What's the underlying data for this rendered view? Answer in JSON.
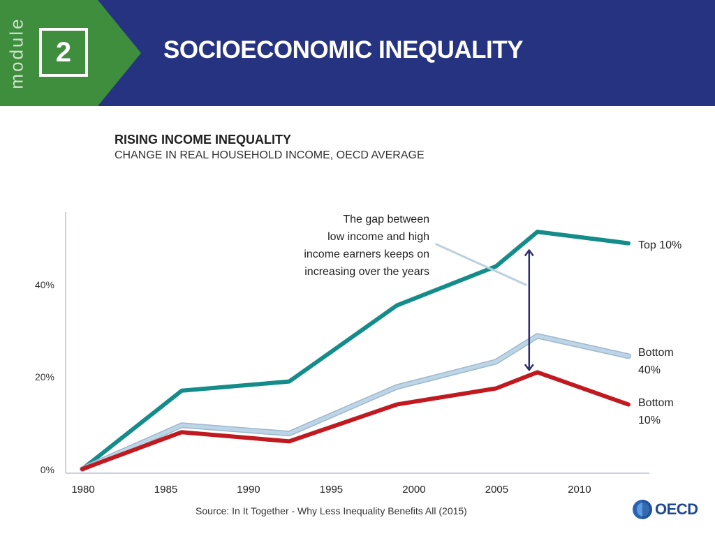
{
  "header": {
    "module_word": "module",
    "module_number": "2",
    "title": "SOCIOECONOMIC INEQUALITY"
  },
  "colors": {
    "header_bg": "#253380",
    "module_bg": "#3f8e3e",
    "top10": "#148c8a",
    "bottom40": "#bcd6e8",
    "bottom10": "#c0191f",
    "arrow": "#2e2f6e"
  },
  "chart_data": {
    "type": "line",
    "title": "RISING INCOME INEQUALITY",
    "subtitle": "CHANGE IN REAL HOUSEHOLD INCOME, OECD AVERAGE",
    "x": [
      1980,
      1986,
      1992.5,
      1999,
      2005,
      2007.5,
      2013
    ],
    "xlim": [
      1980,
      2013
    ],
    "x_ticks": [
      1980,
      1985,
      1990,
      1995,
      2000,
      2005,
      2010
    ],
    "ylim": [
      0,
      50
    ],
    "y_ticks": [
      0,
      20,
      40
    ],
    "y_tick_labels": [
      "0%",
      "20%",
      "40%"
    ],
    "grid": false,
    "series": [
      {
        "name": "Top 10%",
        "values": [
          0,
          17.0,
          19.0,
          35.5,
          44.0,
          51.5,
          49.0
        ]
      },
      {
        "name": "Bottom 40%",
        "values": [
          0,
          9.5,
          7.7,
          17.8,
          23.3,
          28.9,
          24.5
        ]
      },
      {
        "name": "Bottom 10%",
        "values": [
          0,
          8.0,
          6.0,
          14.0,
          17.5,
          21.0,
          14.0
        ]
      }
    ],
    "series_labels": [
      {
        "line1": "Top 10%",
        "line2": ""
      },
      {
        "line1": "Bottom",
        "line2": "40%"
      },
      {
        "line1": "Bottom",
        "line2": "10%"
      }
    ],
    "annotation": {
      "lines": [
        "The gap between",
        "low income and high",
        "income earners keeps on",
        "increasing over the years"
      ],
      "arrow_x": 2007,
      "arrow_y_range": [
        21.5,
        47.5
      ]
    }
  },
  "source": "Source: In It Together - Why Less Inequality Benefits All (2015)",
  "logo_text": "OECD"
}
